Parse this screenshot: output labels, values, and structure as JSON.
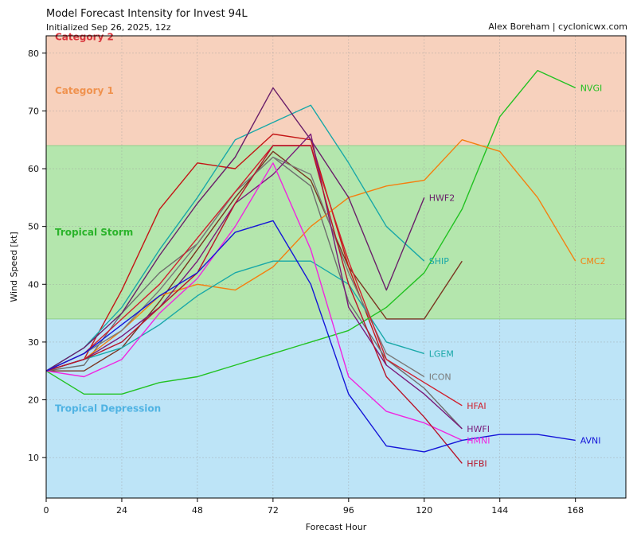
{
  "header": {
    "title": "Model Forecast Intensity for Invest 94L",
    "subtitle": "Initialized Sep 26, 2025, 12z",
    "credit": "Alex Boreham | cyclonicwx.com"
  },
  "chart_data": {
    "type": "line",
    "xlabel": "Forecast Hour",
    "ylabel": "Wind Speed [kt]",
    "xlim": [
      0,
      184
    ],
    "ylim": [
      3,
      83
    ],
    "xticks": [
      0,
      24,
      48,
      72,
      96,
      120,
      144,
      168
    ],
    "yticks": [
      10,
      20,
      30,
      40,
      50,
      60,
      70,
      80
    ],
    "grid": true,
    "bands": [
      {
        "name": "Tropical Depression",
        "from": 3,
        "to": 34,
        "color": "#bde4f7",
        "label_color": "#4fb3e3",
        "label_y": 18.5
      },
      {
        "name": "Tropical Storm",
        "from": 34,
        "to": 64,
        "color": "#b4e6ad",
        "label_color": "#2bb32b",
        "label_y": 49
      },
      {
        "name": "Category 1",
        "from": 64,
        "to": 83,
        "color": "#f7d1bd",
        "label_color": "#f0924e",
        "label_y": 73.5
      },
      {
        "name": "Category 2",
        "from": 83,
        "to": 84,
        "color": "#f7d1bd",
        "label_color": "#d9363e",
        "label_y": 82.8
      }
    ],
    "series": [
      {
        "name": "NVGI",
        "color": "#22c222",
        "x": [
          0,
          12,
          24,
          36,
          48,
          60,
          72,
          84,
          96,
          108,
          120,
          132,
          144,
          156,
          168
        ],
        "y": [
          25,
          21,
          21,
          23,
          24,
          26,
          28,
          30,
          32,
          36,
          42,
          53,
          69,
          77,
          74
        ]
      },
      {
        "name": "CMC2",
        "color": "#f57f0f",
        "x": [
          0,
          12,
          24,
          36,
          48,
          60,
          72,
          84,
          96,
          108,
          120,
          132,
          144,
          156,
          168
        ],
        "y": [
          25,
          27,
          32,
          38,
          40,
          39,
          43,
          50,
          55,
          57,
          58,
          65,
          63,
          55,
          44
        ]
      },
      {
        "name": "SHIP",
        "color": "#19a8a8",
        "x": [
          0,
          12,
          24,
          36,
          48,
          60,
          72,
          84,
          96,
          108,
          120
        ],
        "y": [
          25,
          29,
          36,
          46,
          55,
          65,
          68,
          71,
          61,
          50,
          44
        ]
      },
      {
        "name": "LGEM",
        "color": "#19a8a8",
        "x": [
          0,
          12,
          24,
          36,
          48,
          60,
          72,
          84,
          96,
          108,
          120
        ],
        "y": [
          25,
          27,
          29,
          33,
          38,
          42,
          44,
          44,
          40,
          30,
          28
        ]
      },
      {
        "name": "HWF2",
        "color": "#6a1f6a",
        "x": [
          0,
          12,
          24,
          36,
          48,
          60,
          72,
          84,
          96,
          108,
          120
        ],
        "y": [
          25,
          29,
          35,
          45,
          54,
          62,
          74,
          65,
          55,
          39,
          55
        ]
      },
      {
        "name": "ICON",
        "color": "#7a7a7a",
        "x": [
          0,
          12,
          24,
          36,
          48,
          60,
          72,
          84,
          96,
          108,
          120
        ],
        "y": [
          25,
          28,
          32,
          39,
          47,
          56,
          62,
          59,
          42,
          28,
          24
        ]
      },
      {
        "name": "HFAI",
        "color": "#d0202e",
        "x": [
          0,
          12,
          24,
          36,
          48,
          60,
          72,
          84,
          96,
          108,
          120,
          132
        ],
        "y": [
          25,
          28,
          34,
          40,
          48,
          56,
          64,
          64,
          44,
          27,
          23,
          19
        ]
      },
      {
        "name": "HWFI",
        "color": "#7a1a7a",
        "x": [
          0,
          12,
          24,
          36,
          48,
          60,
          72,
          84,
          96,
          108,
          120,
          132
        ],
        "y": [
          25,
          27,
          31,
          36,
          44,
          54,
          59,
          66,
          36,
          26,
          21,
          15
        ]
      },
      {
        "name": "HMNI",
        "color": "#f025e0",
        "x": [
          0,
          12,
          24,
          36,
          48,
          60,
          72,
          84,
          96,
          108,
          120,
          132
        ],
        "y": [
          25,
          24,
          27,
          35,
          41,
          50,
          61,
          46,
          24,
          18,
          16,
          13
        ]
      },
      {
        "name": "HFBI",
        "color": "#b8152b",
        "x": [
          0,
          12,
          24,
          36,
          48,
          60,
          72,
          84,
          96,
          108,
          120,
          132
        ],
        "y": [
          25,
          27,
          30,
          36,
          42,
          54,
          64,
          64,
          40,
          24,
          17,
          9
        ]
      },
      {
        "name": "AVNI",
        "color": "#1515d8",
        "x": [
          0,
          12,
          24,
          36,
          48,
          60,
          72,
          84,
          96,
          108,
          120,
          132,
          144,
          156,
          168
        ],
        "y": [
          25,
          28,
          33,
          38,
          42,
          49,
          51,
          40,
          21,
          12,
          11,
          13,
          14,
          14,
          13
        ]
      }
    ],
    "unlabeled_series": [
      {
        "color": "#7a3520",
        "x": [
          0,
          12,
          24,
          36,
          48,
          60,
          72,
          84,
          96,
          108,
          120,
          132
        ],
        "y": [
          25,
          25,
          29,
          37,
          46,
          55,
          63,
          58,
          43,
          34,
          34,
          44
        ]
      },
      {
        "color": "#c41515",
        "x": [
          0,
          12,
          24,
          36,
          48,
          60,
          72,
          84,
          96,
          108
        ],
        "y": [
          25,
          27,
          39,
          53,
          61,
          60,
          66,
          65,
          43,
          26
        ]
      },
      {
        "color": "#6e6e6e",
        "x": [
          0,
          12,
          24,
          36,
          48,
          60,
          72,
          84,
          96,
          108,
          120,
          132
        ],
        "y": [
          25,
          26,
          35,
          42,
          47,
          56,
          62,
          57,
          37,
          27,
          22,
          15
        ]
      }
    ],
    "end_labels": [
      {
        "name": "NVGI",
        "color": "#22c222",
        "y": 74
      },
      {
        "name": "CMC2",
        "color": "#f57f0f",
        "y": 44
      },
      {
        "name": "HWF2",
        "color": "#6a1f6a",
        "y": 55
      },
      {
        "name": "SHIP",
        "color": "#19a8a8",
        "y": 44
      },
      {
        "name": "LGEM",
        "color": "#19a8a8",
        "y": 28
      },
      {
        "name": "ICON",
        "color": "#7a7a7a",
        "y": 24
      },
      {
        "name": "HFAI",
        "color": "#d0202e",
        "y": 19
      },
      {
        "name": "HWFI",
        "color": "#7a1a7a",
        "y": 15
      },
      {
        "name": "HMNI",
        "color": "#f025e0",
        "y": 13
      },
      {
        "name": "HFBI",
        "color": "#b8152b",
        "y": 9
      },
      {
        "name": "AVNI",
        "color": "#1515d8",
        "y": 13
      }
    ]
  }
}
